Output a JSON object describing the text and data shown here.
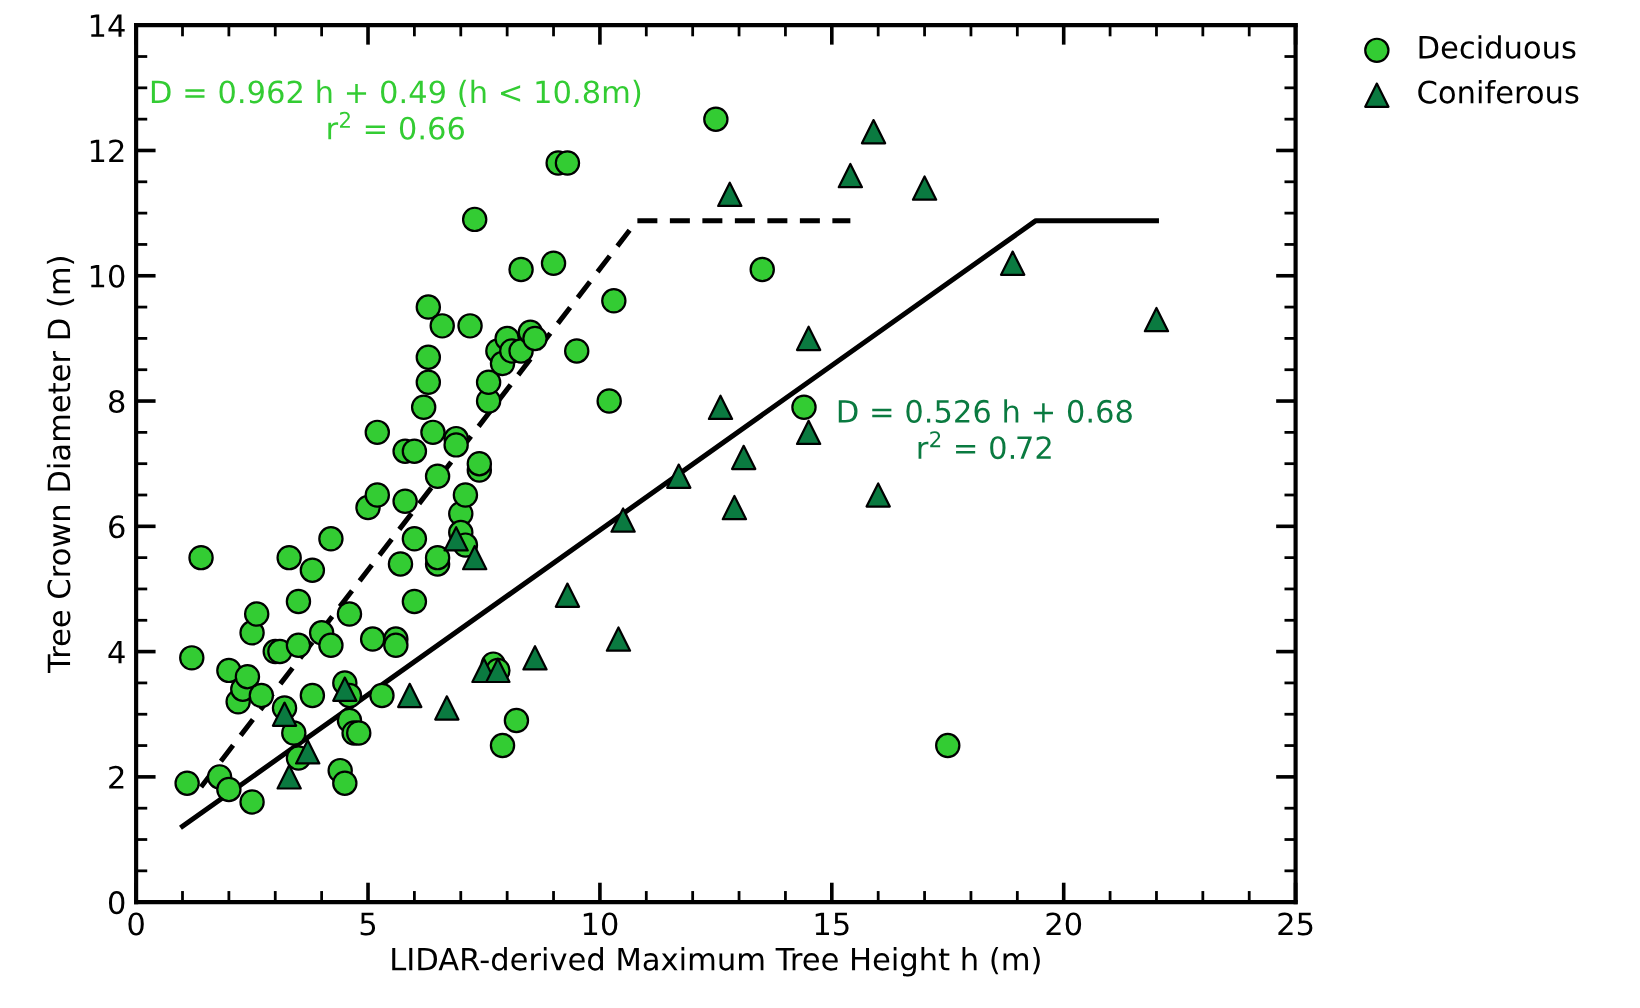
{
  "chart_data": {
    "type": "scatter",
    "xlabel": "LIDAR-derived Maximum Tree Height h (m)",
    "ylabel": "Tree Crown Diameter D (m)",
    "xlim": [
      0,
      25
    ],
    "ylim": [
      0,
      14
    ],
    "xticks": [
      0,
      5,
      10,
      15,
      20,
      25
    ],
    "yticks": [
      0,
      2,
      4,
      6,
      8,
      10,
      12,
      14
    ],
    "grid": false,
    "legend": "top right",
    "annotations": [
      "D = 0.962 h + 0.49 (h < 10.8m)\nr$^{2}$ = 0.66",
      "D = 0.526 h + 0.68\nr$^{2}$ = 0.72"
    ],
    "series": [
      {
        "name": "Deciduous",
        "color": "#33cc33",
        "marker": "circle",
        "x": [
          1.1,
          1.2,
          1.4,
          1.8,
          2.0,
          2.0,
          2.2,
          2.3,
          2.4,
          2.5,
          2.5,
          2.6,
          2.7,
          3.0,
          3.1,
          3.3,
          3.2,
          3.4,
          3.5,
          3.5,
          3.5,
          3.8,
          3.8,
          4.0,
          4.2,
          4.2,
          4.4,
          4.5,
          4.5,
          4.6,
          4.6,
          4.7,
          4.6,
          4.8,
          5.0,
          5.1,
          5.2,
          5.2,
          5.3,
          5.6,
          5.6,
          5.7,
          5.8,
          5.8,
          6.0,
          6.0,
          6.0,
          6.2,
          6.3,
          6.3,
          6.3,
          6.4,
          6.5,
          6.5,
          6.5,
          6.6,
          6.9,
          6.9,
          7.0,
          7.0,
          7.1,
          7.1,
          7.2,
          7.3,
          7.4,
          7.4,
          7.6,
          7.6,
          7.7,
          7.8,
          7.8,
          7.9,
          7.9,
          8.0,
          8.1,
          8.2,
          8.3,
          8.3,
          8.5,
          8.6,
          9.0,
          9.1,
          9.3,
          9.5,
          10.2,
          10.3,
          12.5,
          13.5,
          14.4,
          17.5
        ],
        "values": [
          1.9,
          3.9,
          5.5,
          2.0,
          3.7,
          1.8,
          3.2,
          3.4,
          3.6,
          4.3,
          1.6,
          4.6,
          3.3,
          4.0,
          4.0,
          5.5,
          3.1,
          2.7,
          2.3,
          4.1,
          4.8,
          5.3,
          3.3,
          4.3,
          5.8,
          4.1,
          2.1,
          1.9,
          3.5,
          2.9,
          3.3,
          2.7,
          4.6,
          2.7,
          6.3,
          4.2,
          6.5,
          7.5,
          3.3,
          4.2,
          4.1,
          5.4,
          6.4,
          7.2,
          7.2,
          5.8,
          4.8,
          7.9,
          9.5,
          8.7,
          8.3,
          7.5,
          6.8,
          5.4,
          5.5,
          9.2,
          7.4,
          7.3,
          6.2,
          5.9,
          5.7,
          6.5,
          9.2,
          10.9,
          6.9,
          7.0,
          8.0,
          8.3,
          3.8,
          3.7,
          8.8,
          8.6,
          2.5,
          9.0,
          8.8,
          2.9,
          10.1,
          8.8,
          9.1,
          9.0,
          10.2,
          11.8,
          11.8,
          8.8,
          8.0,
          9.6,
          12.5,
          10.1,
          7.9,
          2.5
        ]
      },
      {
        "name": "Coniferous",
        "color": "#0a7a40",
        "marker": "triangle",
        "x": [
          3.2,
          3.3,
          3.7,
          4.5,
          5.9,
          6.7,
          6.9,
          7.3,
          7.5,
          7.8,
          8.6,
          9.3,
          10.4,
          10.5,
          11.7,
          12.6,
          12.8,
          12.9,
          13.1,
          14.5,
          14.5,
          15.4,
          15.9,
          16.0,
          17.0,
          18.9,
          22.0
        ],
        "values": [
          3.0,
          2.0,
          2.4,
          3.4,
          3.3,
          3.1,
          5.8,
          5.5,
          3.7,
          3.7,
          3.9,
          4.9,
          4.2,
          6.1,
          6.8,
          7.9,
          11.3,
          6.3,
          7.1,
          9.0,
          7.5,
          11.6,
          12.3,
          6.5,
          11.4,
          10.2,
          9.3
        ]
      },
      {
        "type": "line",
        "color": "#000000",
        "line_style": "dashed",
        "marker": "none",
        "x": [
          1.4,
          10.8,
          15.4
        ],
        "values": [
          1.84,
          10.88,
          10.88
        ]
      },
      {
        "type": "line",
        "color": "#000000",
        "line_style": "solid",
        "marker": "none",
        "x": [
          1.0,
          19.4,
          22.0
        ],
        "values": [
          1.21,
          10.88,
          10.88
        ]
      }
    ]
  }
}
